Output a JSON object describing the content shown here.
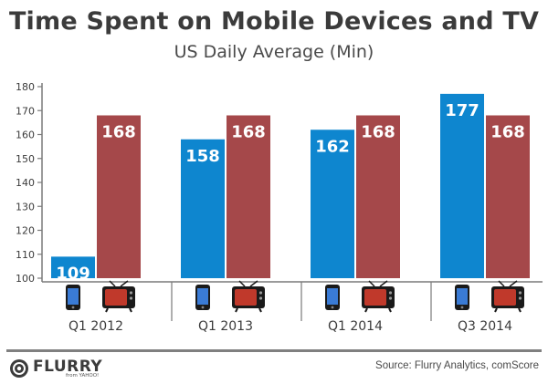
{
  "header": {
    "title": "Time Spent on Mobile Devices and TV",
    "subtitle": "US Daily Average (Min)"
  },
  "footer": {
    "source": "Source: Flurry Analytics, comScore",
    "logo_text": "FLURRY",
    "logo_sub": "from YAHOO!"
  },
  "colors": {
    "mobile": "#0e86cf",
    "tv": "#a5484a",
    "axis": "#7a7a7a",
    "text": "#3b3b3b"
  },
  "chart_data": {
    "type": "bar",
    "categories": [
      "Q1 2012",
      "Q1 2013",
      "Q1 2014",
      "Q3 2014"
    ],
    "series": [
      {
        "icon": "smartphone-icon",
        "values": [
          109,
          158,
          162,
          177
        ]
      },
      {
        "icon": "television-icon",
        "values": [
          168,
          168,
          168,
          168
        ]
      }
    ],
    "ylim": [
      100,
      180
    ],
    "yticks": [
      100,
      110,
      120,
      130,
      140,
      150,
      160,
      170,
      180
    ],
    "title": "Time Spent on Mobile Devices and TV",
    "subtitle": "US Daily Average (Min)",
    "xlabel": "",
    "ylabel": "",
    "grid": false
  }
}
